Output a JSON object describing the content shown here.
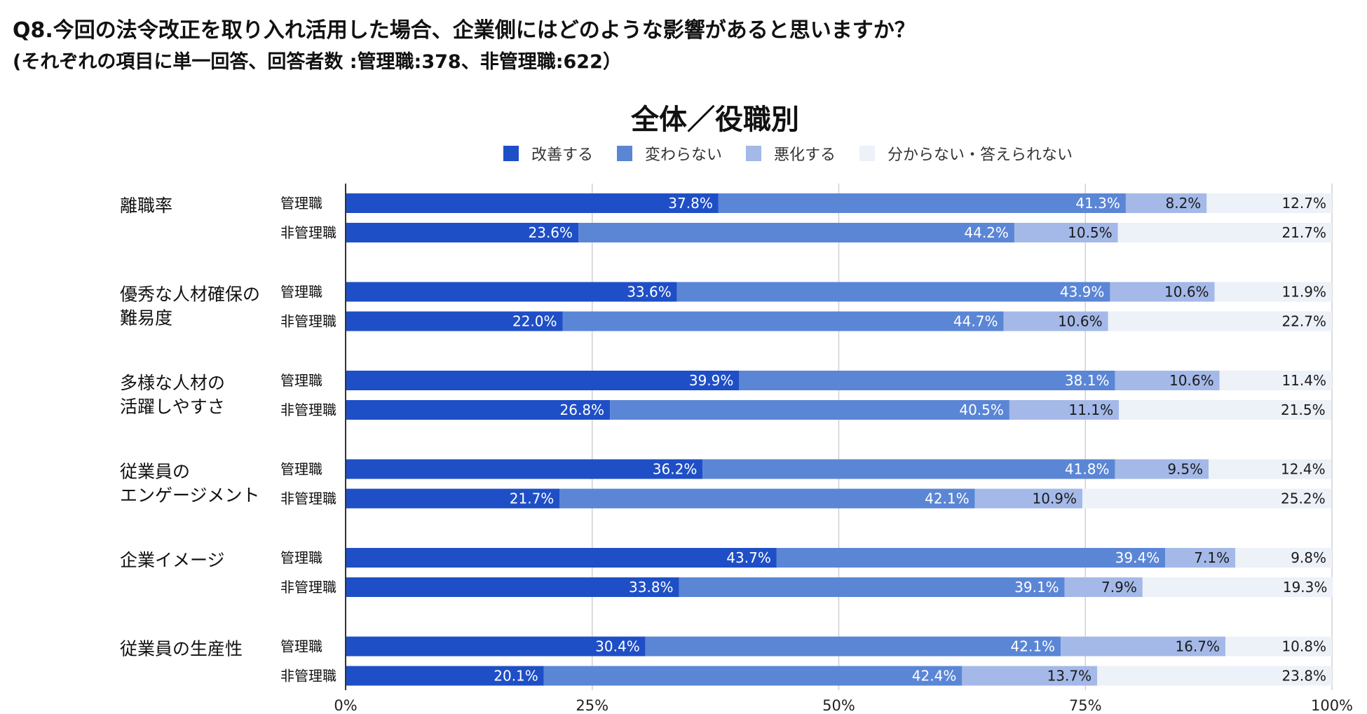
{
  "header": {
    "question": "Q8.今回の法令改正を取り入れ活用した場合、企業側にはどのような影響があると思いますか？",
    "sub": "(それぞれの項目に単一回答、回答者数 :管理職:378、非管理職:622）"
  },
  "chart_data": {
    "type": "bar",
    "orientation": "horizontal",
    "stacked": true,
    "title": "全体／役職別",
    "legend_position": "top",
    "xlim": [
      0,
      100
    ],
    "x_ticks": [
      "0%",
      "25%",
      "50%",
      "75%",
      "100%"
    ],
    "series_names": [
      "改善する",
      "変わらない",
      "悪化する",
      "分からない・答えられない"
    ],
    "series_colors": [
      "#1f4fc6",
      "#5b86d6",
      "#a4b9e8",
      "#edf1f8"
    ],
    "label_colors": [
      "#ffffff",
      "#ffffff",
      "#1a1a1a",
      "#1a1a1a"
    ],
    "groups": [
      {
        "name_lines": [
          "離職率"
        ],
        "rows": [
          {
            "role": "管理職",
            "values": [
              37.8,
              41.3,
              8.2,
              12.7
            ]
          },
          {
            "role": "非管理職",
            "values": [
              23.6,
              44.2,
              10.5,
              21.7
            ]
          }
        ]
      },
      {
        "name_lines": [
          "優秀な人材確保の",
          "難易度"
        ],
        "rows": [
          {
            "role": "管理職",
            "values": [
              33.6,
              43.9,
              10.6,
              11.9
            ]
          },
          {
            "role": "非管理職",
            "values": [
              22.0,
              44.7,
              10.6,
              22.7
            ]
          }
        ]
      },
      {
        "name_lines": [
          "多様な人材の",
          "活躍しやすさ"
        ],
        "rows": [
          {
            "role": "管理職",
            "values": [
              39.9,
              38.1,
              10.6,
              11.4
            ]
          },
          {
            "role": "非管理職",
            "values": [
              26.8,
              40.5,
              11.1,
              21.5
            ]
          }
        ]
      },
      {
        "name_lines": [
          "従業員の",
          "エンゲージメント"
        ],
        "rows": [
          {
            "role": "管理職",
            "values": [
              36.2,
              41.8,
              9.5,
              12.4
            ]
          },
          {
            "role": "非管理職",
            "values": [
              21.7,
              42.1,
              10.9,
              25.2
            ]
          }
        ]
      },
      {
        "name_lines": [
          "企業イメージ"
        ],
        "rows": [
          {
            "role": "管理職",
            "values": [
              43.7,
              39.4,
              7.1,
              9.8
            ]
          },
          {
            "role": "非管理職",
            "values": [
              33.8,
              39.1,
              7.9,
              19.3
            ]
          }
        ]
      },
      {
        "name_lines": [
          "従業員の生産性"
        ],
        "rows": [
          {
            "role": "管理職",
            "values": [
              30.4,
              42.1,
              16.7,
              10.8
            ]
          },
          {
            "role": "非管理職",
            "values": [
              20.1,
              42.4,
              13.7,
              23.8
            ]
          }
        ]
      }
    ]
  }
}
